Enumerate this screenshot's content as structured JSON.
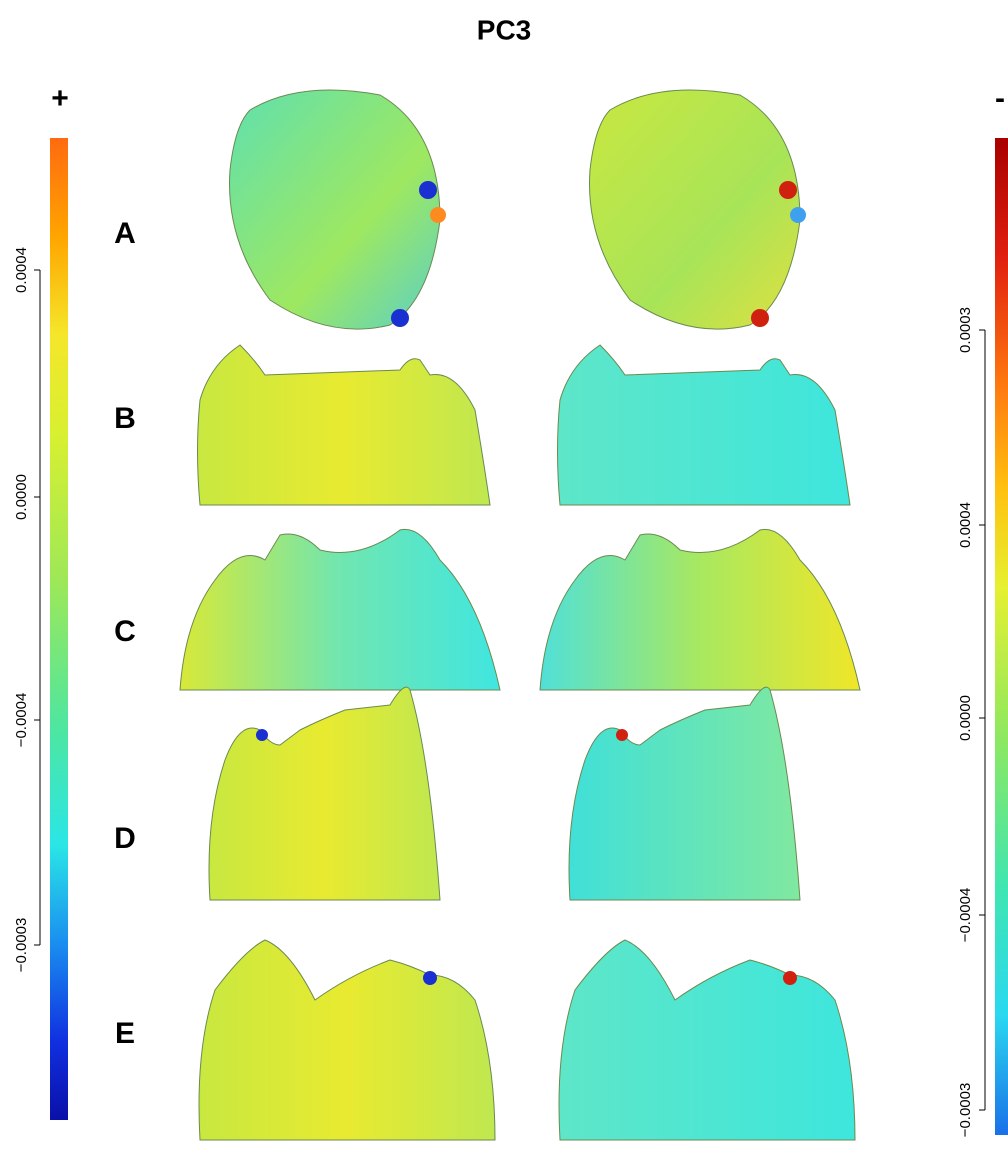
{
  "title": "PC3",
  "left_colorbar": {
    "sign": "+",
    "ticks": [
      "0.0004",
      "0.0000",
      "−0.0004",
      "−0.0003"
    ]
  },
  "right_colorbar": {
    "sign": "-",
    "ticks": [
      "0.0003",
      "0.0004",
      "0.0000",
      "−0.0004",
      "−0.0003"
    ]
  },
  "rows": [
    "A",
    "B",
    "C",
    "D",
    "E"
  ]
}
